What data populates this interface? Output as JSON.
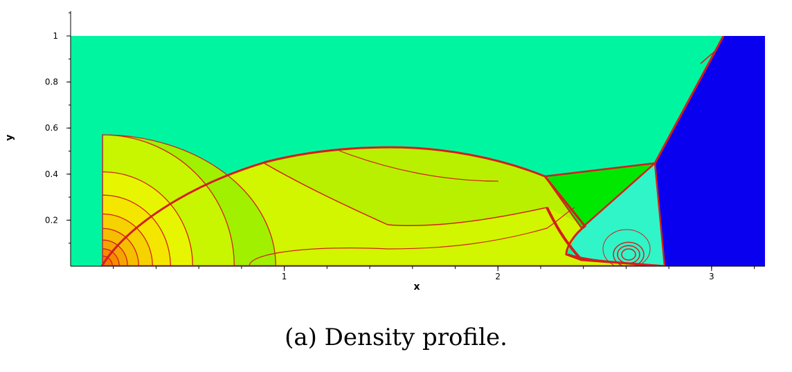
{
  "chart_data": {
    "type": "heatmap",
    "xlabel": "x",
    "ylabel": "y",
    "xlim": [
      0,
      3.25
    ],
    "ylim": [
      0,
      1
    ],
    "x_ticks": [
      1,
      2,
      3
    ],
    "y_ticks": [
      0.2,
      0.4,
      0.6,
      0.8,
      1
    ],
    "grid": false,
    "colors": {
      "ambient": "#00F5A0",
      "contour": "#D41E1E",
      "inflow": "#0A00F0",
      "mach_region": "#00E800",
      "vortex_region": "#30F5C8",
      "nose_levels": [
        "#F57800",
        "#F58C00",
        "#F5A500",
        "#F5BE00",
        "#F5D200",
        "#F5E600",
        "#E8F500",
        "#C8F500",
        "#A0F000"
      ]
    }
  },
  "caption": "(a) Density profile."
}
